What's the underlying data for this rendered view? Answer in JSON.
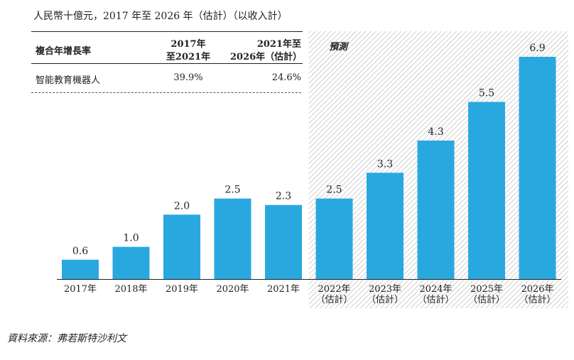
{
  "unit_note": "人民幣十億元，2017 年至 2026 年（估計）（以收入計）",
  "cagr_table": {
    "header": {
      "col0": "複合年增長率",
      "col1_line1": "2017年",
      "col1_line2": "至2021年",
      "col2_line1": "2021年至",
      "col2_line2": "2026年（估計）"
    },
    "rows": [
      {
        "label": "智能教育機器人",
        "v1": "39.9%",
        "v2": "24.6%"
      }
    ]
  },
  "forecast_label": "預測",
  "source": "資料來源：弗若斯特沙利文",
  "colors": {
    "bar": "#29a8e0",
    "hatch": "#cfcfcf"
  },
  "chart_data": {
    "type": "bar",
    "title": "",
    "xlabel": "",
    "ylabel": "",
    "categories": [
      [
        "2017年"
      ],
      [
        "2018年"
      ],
      [
        "2019年"
      ],
      [
        "2020年"
      ],
      [
        "2021年"
      ],
      [
        "2022年",
        "（估計）"
      ],
      [
        "2023年",
        "（估計）"
      ],
      [
        "2024年",
        "（估計）"
      ],
      [
        "2025年",
        "（估計）"
      ],
      [
        "2026年",
        "（估計）"
      ]
    ],
    "values": [
      0.6,
      1.0,
      2.0,
      2.5,
      2.3,
      2.5,
      3.3,
      4.3,
      5.5,
      6.9
    ],
    "value_labels": [
      "0.6",
      "1.0",
      "2.0",
      "2.5",
      "2.3",
      "2.5",
      "3.3",
      "4.3",
      "5.5",
      "6.9"
    ],
    "forecast_start_index": 5,
    "ylim": [
      0,
      6.9
    ],
    "grid": false,
    "legend": "none"
  }
}
